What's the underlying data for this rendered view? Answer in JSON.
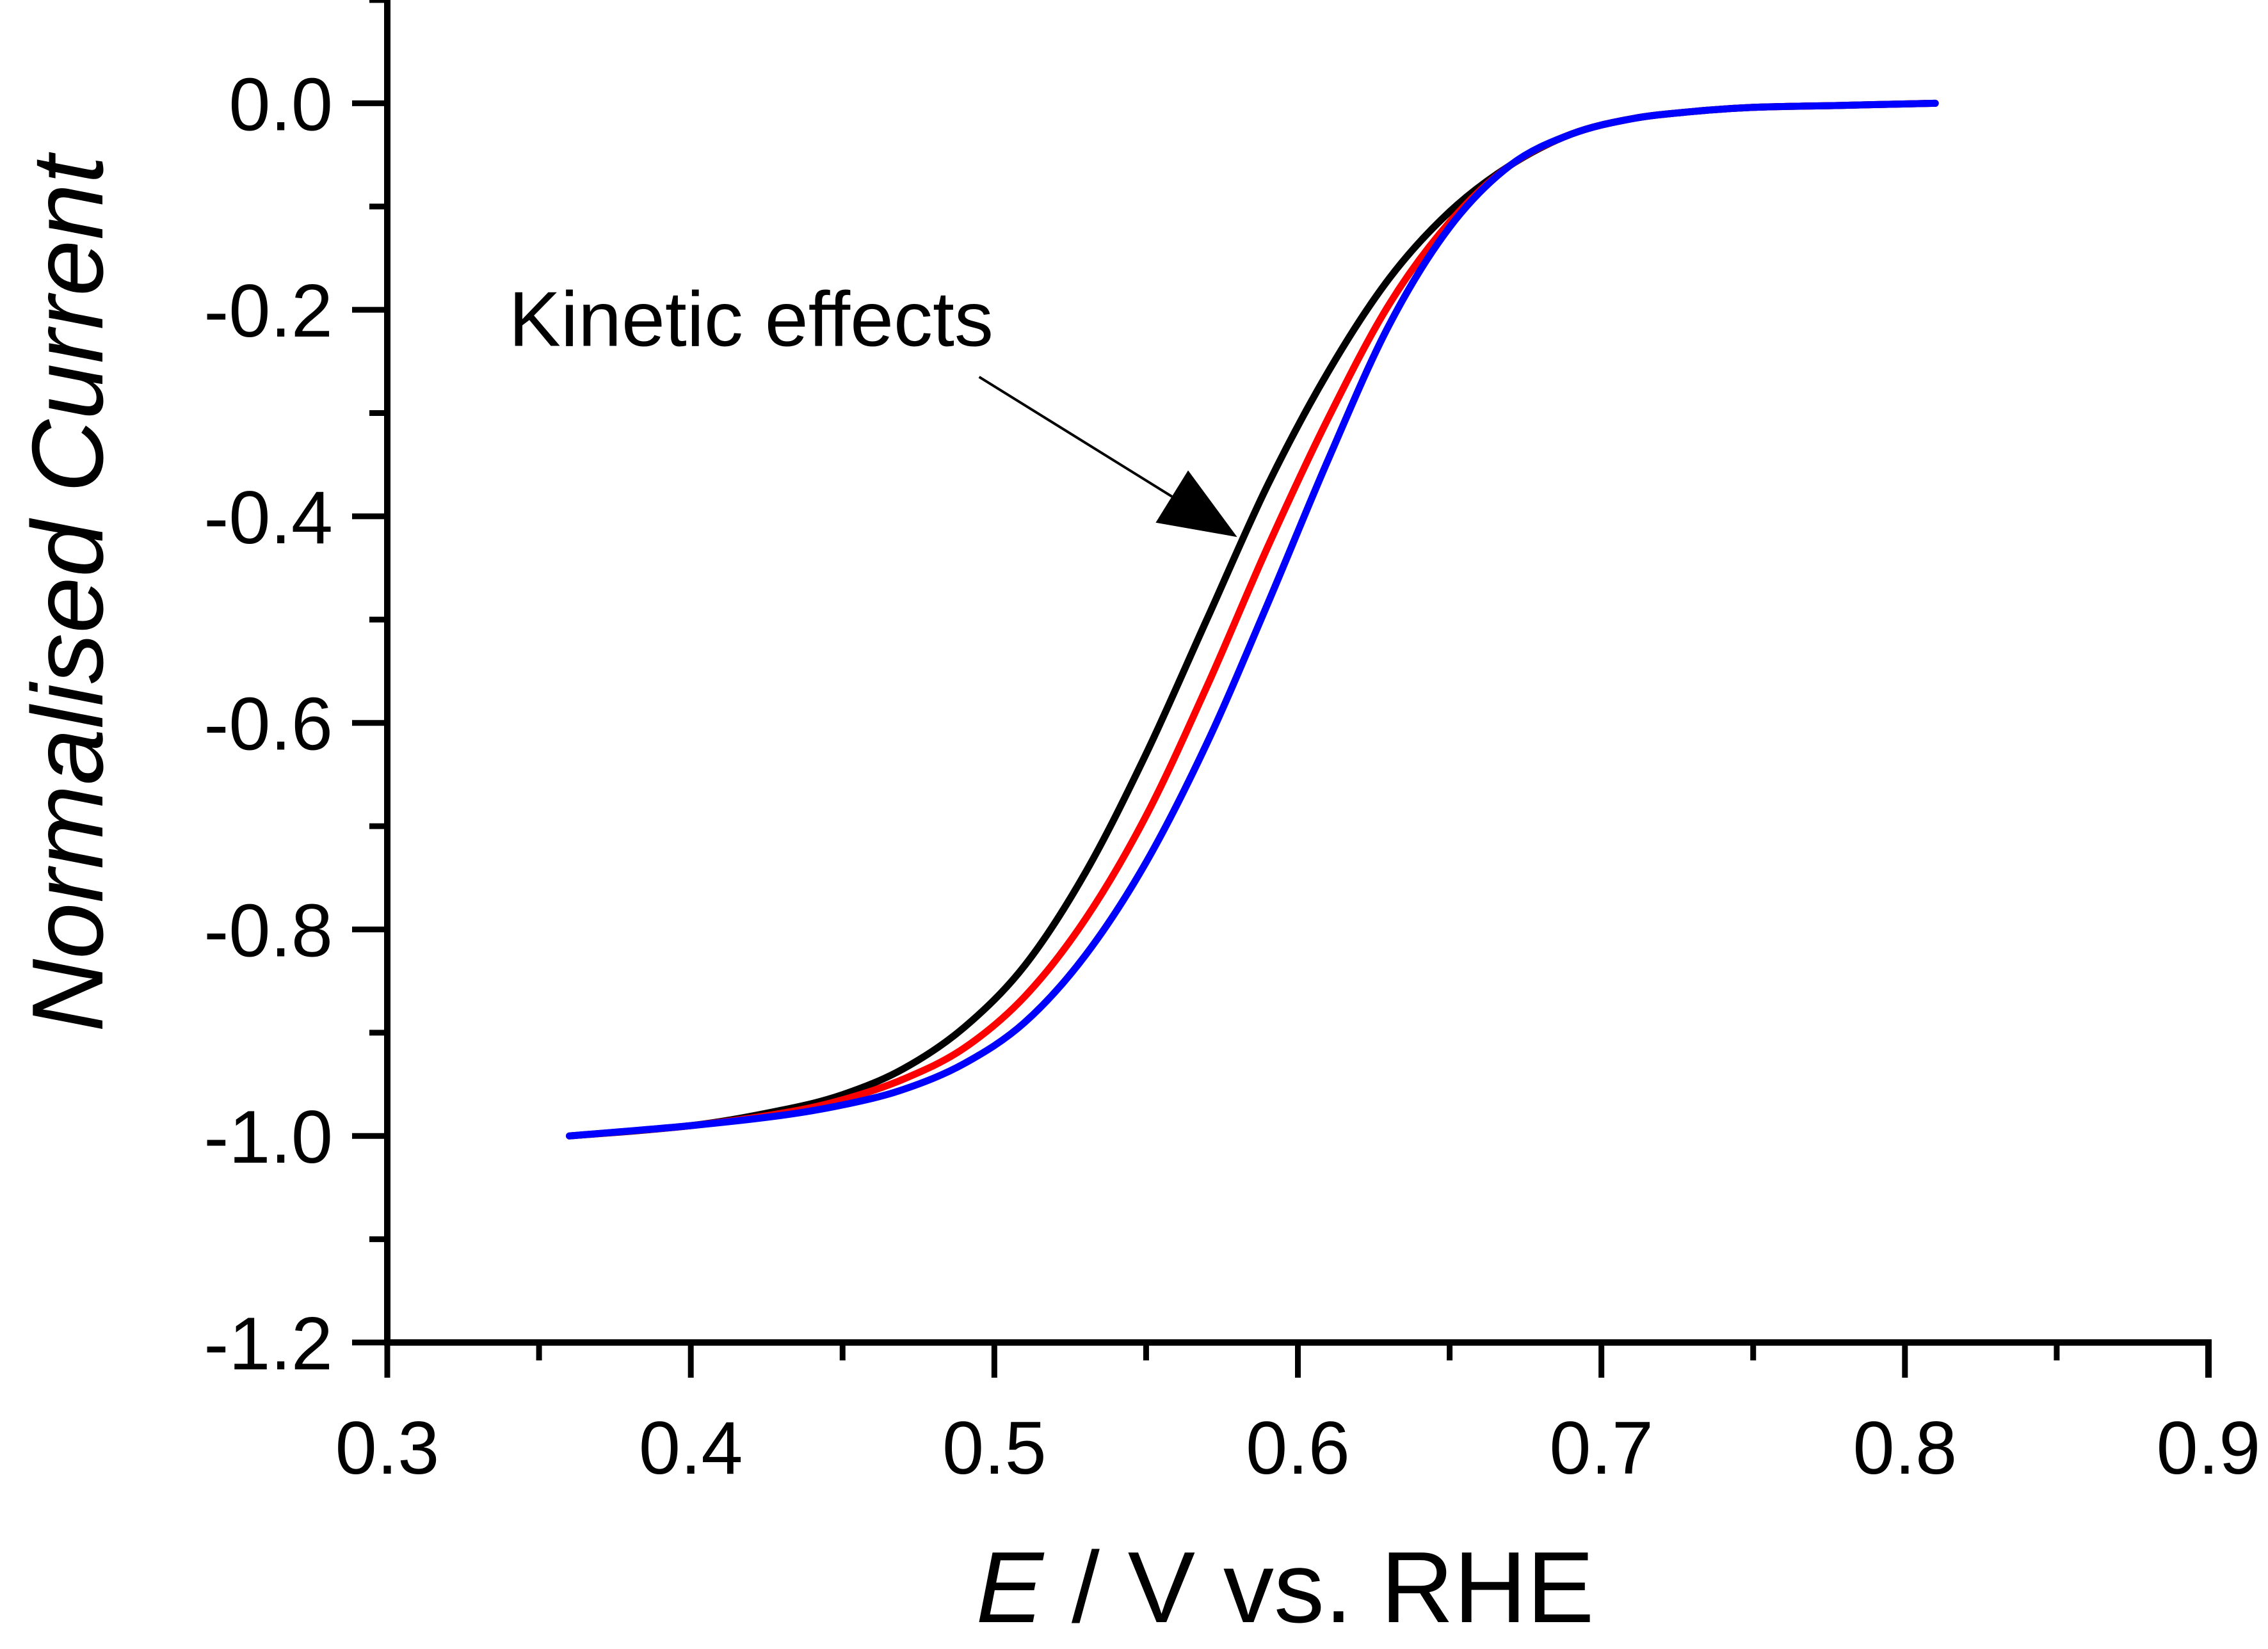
{
  "chart_data": {
    "type": "line",
    "title": "",
    "xlabel_var": "E",
    "xlabel_rest": " / V vs. RHE",
    "ylabel": "Normalised Current",
    "xlim": [
      0.3,
      0.9
    ],
    "ylim": [
      -1.2,
      0.1
    ],
    "xticks": [
      0.3,
      0.4,
      0.5,
      0.6,
      0.7,
      0.8,
      0.9
    ],
    "xtick_labels": [
      "0.3",
      "0.4",
      "0.5",
      "0.6",
      "0.7",
      "0.8",
      "0.9"
    ],
    "yticks": [
      0.0,
      -0.2,
      -0.4,
      -0.6,
      -0.8,
      -1.0,
      -1.2
    ],
    "ytick_labels": [
      "0.0",
      "-0.2",
      "-0.4",
      "-0.6",
      "-0.8",
      "-1.0",
      "-1.2"
    ],
    "grid": false,
    "legend": "none",
    "annotation": {
      "text": "Kinetic effects",
      "label_at": [
        0.34,
        -0.235
      ],
      "arrow_from": [
        0.495,
        -0.265
      ],
      "arrow_to": [
        0.58,
        -0.42
      ]
    },
    "series": [
      {
        "color": "#000000",
        "x": [
          0.36,
          0.4,
          0.43,
          0.45,
          0.47,
          0.49,
          0.51,
          0.53,
          0.55,
          0.57,
          0.59,
          0.61,
          0.63,
          0.65,
          0.67,
          0.69,
          0.71,
          0.73,
          0.75,
          0.78,
          0.81
        ],
        "y": [
          -1.0,
          -0.99,
          -0.975,
          -0.96,
          -0.935,
          -0.895,
          -0.835,
          -0.745,
          -0.63,
          -0.5,
          -0.37,
          -0.26,
          -0.17,
          -0.105,
          -0.06,
          -0.03,
          -0.015,
          -0.008,
          -0.004,
          -0.002,
          0.0
        ]
      },
      {
        "color": "#ff0000",
        "x": [
          0.36,
          0.4,
          0.43,
          0.45,
          0.47,
          0.49,
          0.51,
          0.53,
          0.55,
          0.57,
          0.59,
          0.61,
          0.63,
          0.65,
          0.67,
          0.69,
          0.71,
          0.73,
          0.75,
          0.78,
          0.81
        ],
        "y": [
          -1.0,
          -0.99,
          -0.978,
          -0.965,
          -0.945,
          -0.915,
          -0.865,
          -0.79,
          -0.69,
          -0.565,
          -0.43,
          -0.305,
          -0.195,
          -0.115,
          -0.06,
          -0.03,
          -0.015,
          -0.008,
          -0.004,
          -0.002,
          0.0
        ]
      },
      {
        "color": "#0000ff",
        "x": [
          0.36,
          0.4,
          0.43,
          0.45,
          0.47,
          0.49,
          0.51,
          0.53,
          0.55,
          0.57,
          0.59,
          0.61,
          0.63,
          0.65,
          0.67,
          0.69,
          0.71,
          0.73,
          0.75,
          0.78,
          0.81
        ],
        "y": [
          -1.0,
          -0.99,
          -0.98,
          -0.97,
          -0.955,
          -0.93,
          -0.89,
          -0.825,
          -0.735,
          -0.62,
          -0.485,
          -0.345,
          -0.215,
          -0.12,
          -0.06,
          -0.03,
          -0.015,
          -0.008,
          -0.004,
          -0.002,
          0.0
        ]
      }
    ]
  }
}
